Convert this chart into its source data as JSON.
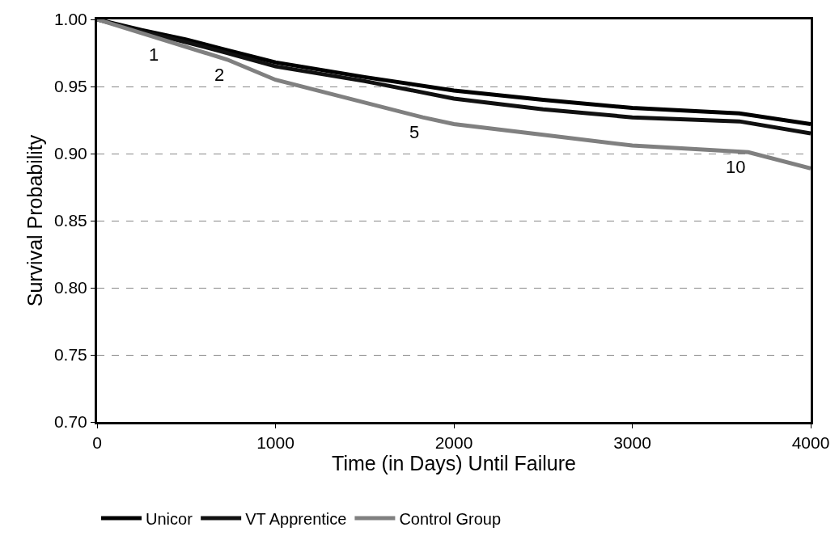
{
  "chart_data": {
    "type": "line",
    "xlabel": "Time (in Days) Until Failure",
    "ylabel": "Survival Probability",
    "xlim": [
      0,
      4000
    ],
    "xticks": [
      0,
      1000,
      2000,
      3000,
      4000
    ],
    "ylim": [
      0.7,
      1.0
    ],
    "yticks": [
      {
        "value": 0.7,
        "label": "0.70"
      },
      {
        "value": 0.75,
        "label": "0.75"
      },
      {
        "value": 0.8,
        "label": "0.80"
      },
      {
        "value": 0.85,
        "label": "0.85"
      },
      {
        "value": 0.9,
        "label": "0.90"
      },
      {
        "value": 0.95,
        "label": "0.95"
      },
      {
        "value": 1.0,
        "label": "1.00"
      }
    ],
    "grid": "y",
    "legend": "bottom",
    "marker": "none",
    "line_style": "solid",
    "series": [
      {
        "name": "Unicor",
        "color": "#000000",
        "x": [
          0,
          250,
          500,
          700,
          1000,
          1500,
          2000,
          2500,
          3000,
          3600,
          4000
        ],
        "values": [
          1.0,
          0.992,
          0.985,
          0.978,
          0.968,
          0.957,
          0.947,
          0.94,
          0.934,
          0.93,
          0.922
        ]
      },
      {
        "name": "VT Apprentice",
        "color": "#111111",
        "x": [
          0,
          250,
          500,
          700,
          1000,
          1500,
          2000,
          2500,
          3000,
          3600,
          4000
        ],
        "values": [
          1.0,
          0.991,
          0.983,
          0.976,
          0.965,
          0.954,
          0.941,
          0.933,
          0.927,
          0.924,
          0.915
        ]
      },
      {
        "name": "Control Group",
        "color": "#808080",
        "x": [
          0,
          365,
          730,
          1000,
          1500,
          1825,
          2000,
          2500,
          3000,
          3650,
          4000
        ],
        "values": [
          1.0,
          0.985,
          0.97,
          0.955,
          0.938,
          0.927,
          0.922,
          0.914,
          0.906,
          0.901,
          0.889
        ]
      }
    ],
    "annotations": [
      {
        "text": "1",
        "x": 365,
        "y": 0.985
      },
      {
        "text": "2",
        "x": 730,
        "y": 0.97
      },
      {
        "text": "5",
        "x": 1825,
        "y": 0.927
      },
      {
        "text": "10",
        "x": 3650,
        "y": 0.901
      }
    ]
  }
}
